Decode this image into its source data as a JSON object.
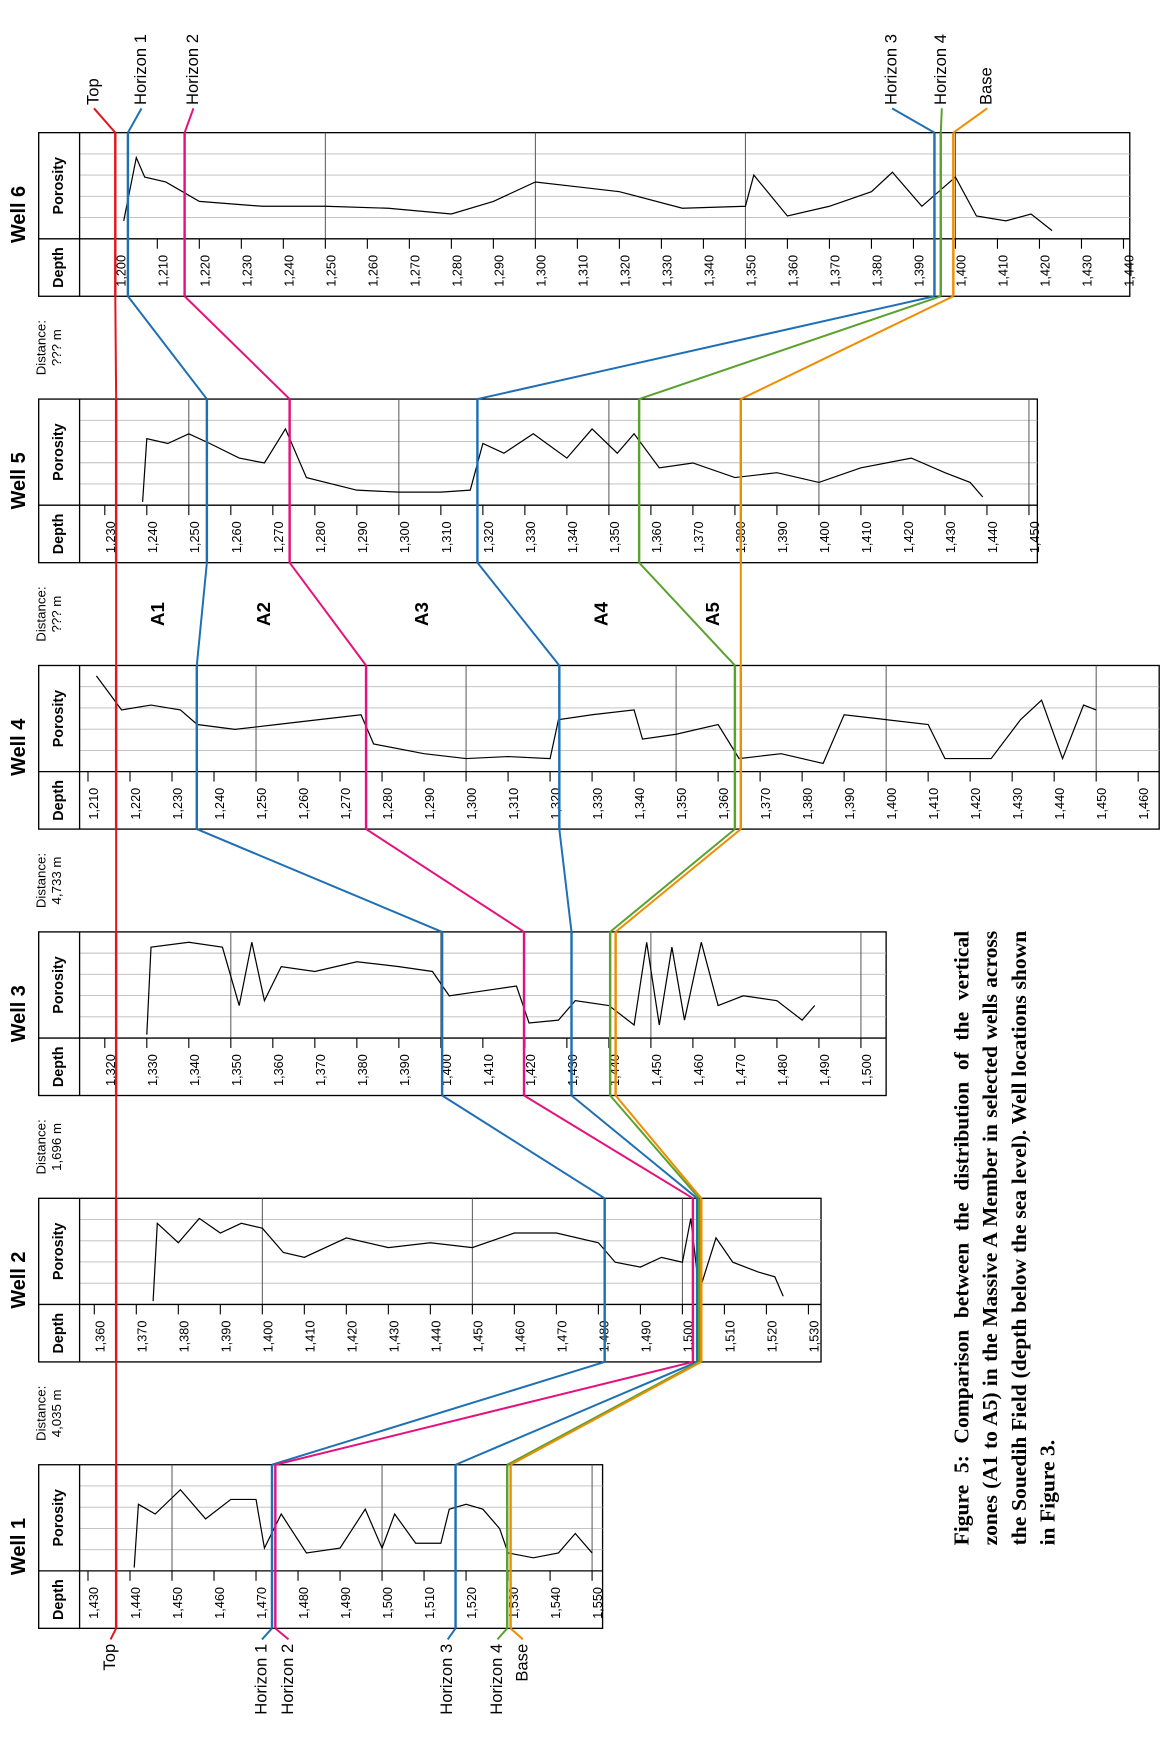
{
  "figure": {
    "caption": "Figure 5: Comparison between the distribution of the vertical zones (A1 to A5) in the Massive A Member in selected wells across the Souedih Field (depth below the sea level). Well locations shown in Figure 3.",
    "track_labels": {
      "depth": "Depth",
      "porosity": "Porosity"
    },
    "zones": [
      "A1",
      "A2",
      "A3",
      "A4",
      "A5"
    ],
    "horizons": [
      {
        "name": "Top",
        "color": "#e3141b"
      },
      {
        "name": "Horizon 1",
        "color": "#1f6fb5"
      },
      {
        "name": "Horizon 2",
        "color": "#e5127d"
      },
      {
        "name": "Horizon 3",
        "color": "#1f6fb5"
      },
      {
        "name": "Horizon 4",
        "color": "#5aa12e"
      },
      {
        "name": "Base",
        "color": "#f08c00"
      }
    ],
    "distances": [
      {
        "label": "Distance:",
        "value": "??? m",
        "color": "#e3141b"
      },
      {
        "label": "Distance:",
        "value": "??? m",
        "color": "#e3141b"
      },
      {
        "label": "Distance:",
        "value": "4,733 m",
        "color": "#000000"
      },
      {
        "label": "Distance:",
        "value": "1,696 m",
        "color": "#000000"
      },
      {
        "label": "Distance:",
        "value": "4,035 m",
        "color": "#000000"
      }
    ],
    "wells": [
      {
        "name": "Well 6",
        "xlim": [
          1191.5,
          1441.5
        ],
        "horizons": [
          1200,
          1203,
          1216.5,
          1395,
          1396.5,
          1399.5
        ],
        "xticks": [
          {
            "value": 1200,
            "label": "1,200"
          },
          {
            "value": 1210,
            "label": "1,210"
          },
          {
            "value": 1220,
            "label": "1,220"
          },
          {
            "value": 1230,
            "label": "1,230"
          },
          {
            "value": 1240,
            "label": "1,240"
          },
          {
            "value": 1250,
            "label": "1,250"
          },
          {
            "value": 1260,
            "label": "1,260"
          },
          {
            "value": 1270,
            "label": "1,270"
          },
          {
            "value": 1280,
            "label": "1,280"
          },
          {
            "value": 1290,
            "label": "1,290"
          },
          {
            "value": 1300,
            "label": "1,300"
          },
          {
            "value": 1310,
            "label": "1,310"
          },
          {
            "value": 1320,
            "label": "1,320"
          },
          {
            "value": 1330,
            "label": "1,330"
          },
          {
            "value": 1340,
            "label": "1,340"
          },
          {
            "value": 1350,
            "label": "1,350"
          },
          {
            "value": 1360,
            "label": "1,360"
          },
          {
            "value": 1370,
            "label": "1,370"
          },
          {
            "value": 1380,
            "label": "1,380"
          },
          {
            "value": 1390,
            "label": "1,390"
          },
          {
            "value": 1400,
            "label": "1,400"
          },
          {
            "value": 1410,
            "label": "1,410"
          },
          {
            "value": 1420,
            "label": "1,420"
          },
          {
            "value": 1430,
            "label": "1,430"
          },
          {
            "value": 1440,
            "label": "1,440"
          }
        ],
        "porosity": {
          "depth": [
            1202,
            1205,
            1207,
            1212,
            1220,
            1235,
            1250,
            1265,
            1280,
            1290,
            1300,
            1310,
            1320,
            1335,
            1350,
            1352,
            1360,
            1370,
            1380,
            1385,
            1392,
            1400,
            1405,
            1412,
            1418,
            1423
          ],
          "values": [
            0.15,
            0.8,
            0.6,
            0.55,
            0.35,
            0.3,
            0.3,
            0.28,
            0.22,
            0.35,
            0.55,
            0.5,
            0.45,
            0.28,
            0.3,
            0.62,
            0.2,
            0.3,
            0.45,
            0.65,
            0.3,
            0.6,
            0.2,
            0.15,
            0.22,
            0.05
          ]
        }
      },
      {
        "name": "Well 5",
        "xlim": [
          1224,
          1452
        ],
        "horizons": [
          1232.7,
          1254.3,
          1274,
          1318.7,
          1357.2,
          1381.4
        ],
        "xticks": [
          {
            "value": 1230,
            "label": "1,230"
          },
          {
            "value": 1240,
            "label": "1,240"
          },
          {
            "value": 1250,
            "label": "1,250"
          },
          {
            "value": 1260,
            "label": "1,260"
          },
          {
            "value": 1270,
            "label": "1,270"
          },
          {
            "value": 1280,
            "label": "1,280"
          },
          {
            "value": 1290,
            "label": "1,290"
          },
          {
            "value": 1300,
            "label": "1,300"
          },
          {
            "value": 1310,
            "label": "1,310"
          },
          {
            "value": 1320,
            "label": "1,320"
          },
          {
            "value": 1330,
            "label": "1,330"
          },
          {
            "value": 1340,
            "label": "1,340"
          },
          {
            "value": 1350,
            "label": "1,350"
          },
          {
            "value": 1360,
            "label": "1,360"
          },
          {
            "value": 1370,
            "label": "1,370"
          },
          {
            "value": 1380,
            "label": "1,380"
          },
          {
            "value": 1390,
            "label": "1,390"
          },
          {
            "value": 1400,
            "label": "1,400"
          },
          {
            "value": 1410,
            "label": "1,410"
          },
          {
            "value": 1420,
            "label": "1,420"
          },
          {
            "value": 1430,
            "label": "1,430"
          },
          {
            "value": 1440,
            "label": "1,440"
          },
          {
            "value": 1450,
            "label": "1,450"
          }
        ],
        "porosity": {
          "depth": [
            1239,
            1240,
            1245,
            1250,
            1255,
            1262,
            1268,
            1273,
            1278,
            1290,
            1300,
            1310,
            1317,
            1320,
            1325,
            1332,
            1340,
            1346,
            1352,
            1356,
            1362,
            1370,
            1380,
            1390,
            1400,
            1410,
            1422,
            1430,
            1436,
            1439
          ],
          "values": [
            0.0,
            0.65,
            0.6,
            0.7,
            0.6,
            0.45,
            0.4,
            0.75,
            0.25,
            0.12,
            0.1,
            0.1,
            0.12,
            0.6,
            0.5,
            0.7,
            0.45,
            0.75,
            0.5,
            0.7,
            0.35,
            0.4,
            0.25,
            0.3,
            0.2,
            0.35,
            0.45,
            0.3,
            0.2,
            0.05
          ]
        }
      },
      {
        "name": "Well 4",
        "xlim": [
          1208,
          1465
        ],
        "horizons": [
          1216.7,
          1235.9,
          1276.2,
          1322.2,
          1364,
          1365.4
        ],
        "xticks": [
          {
            "value": 1210,
            "label": "1,210"
          },
          {
            "value": 1220,
            "label": "1,220"
          },
          {
            "value": 1230,
            "label": "1,230"
          },
          {
            "value": 1240,
            "label": "1,240"
          },
          {
            "value": 1250,
            "label": "1,250"
          },
          {
            "value": 1260,
            "label": "1,260"
          },
          {
            "value": 1270,
            "label": "1,270"
          },
          {
            "value": 1280,
            "label": "1,280"
          },
          {
            "value": 1290,
            "label": "1,290"
          },
          {
            "value": 1300,
            "label": "1,300"
          },
          {
            "value": 1310,
            "label": "1,310"
          },
          {
            "value": 1320,
            "label": "1,320"
          },
          {
            "value": 1330,
            "label": "1,330"
          },
          {
            "value": 1340,
            "label": "1,340"
          },
          {
            "value": 1350,
            "label": "1,350"
          },
          {
            "value": 1360,
            "label": "1,360"
          },
          {
            "value": 1370,
            "label": "1,370"
          },
          {
            "value": 1380,
            "label": "1,380"
          },
          {
            "value": 1390,
            "label": "1,390"
          },
          {
            "value": 1400,
            "label": "1,400"
          },
          {
            "value": 1410,
            "label": "1,410"
          },
          {
            "value": 1420,
            "label": "1,420"
          },
          {
            "value": 1430,
            "label": "1,430"
          },
          {
            "value": 1440,
            "label": "1,440"
          },
          {
            "value": 1450,
            "label": "1,450"
          },
          {
            "value": 1460,
            "label": "1,460"
          }
        ],
        "porosity": {
          "depth": [
            1212,
            1218,
            1225,
            1232,
            1236,
            1245,
            1255,
            1265,
            1275,
            1278,
            1290,
            1300,
            1310,
            1320,
            1322,
            1330,
            1340,
            1342,
            1350,
            1360,
            1365,
            1375,
            1385,
            1390,
            1400,
            1410,
            1414,
            1425,
            1432,
            1437,
            1442,
            1447,
            1450
          ],
          "values": [
            0.95,
            0.6,
            0.65,
            0.6,
            0.45,
            0.4,
            0.45,
            0.5,
            0.55,
            0.25,
            0.15,
            0.1,
            0.12,
            0.1,
            0.5,
            0.55,
            0.6,
            0.3,
            0.35,
            0.45,
            0.1,
            0.15,
            0.05,
            0.55,
            0.5,
            0.45,
            0.1,
            0.1,
            0.5,
            0.7,
            0.1,
            0.65,
            0.6
          ]
        }
      },
      {
        "name": "Well 3",
        "xlim": [
          1314,
          1506
        ],
        "horizons": [
          1322.7,
          1400.3,
          1419.8,
          1431.1,
          1440.3,
          1441.6
        ],
        "xticks": [
          {
            "value": 1320,
            "label": "1,320"
          },
          {
            "value": 1330,
            "label": "1,330"
          },
          {
            "value": 1340,
            "label": "1,340"
          },
          {
            "value": 1350,
            "label": "1,350"
          },
          {
            "value": 1360,
            "label": "1,360"
          },
          {
            "value": 1370,
            "label": "1,370"
          },
          {
            "value": 1380,
            "label": "1,380"
          },
          {
            "value": 1390,
            "label": "1,390"
          },
          {
            "value": 1400,
            "label": "1,400"
          },
          {
            "value": 1410,
            "label": "1,410"
          },
          {
            "value": 1420,
            "label": "1,420"
          },
          {
            "value": 1430,
            "label": "1,430"
          },
          {
            "value": 1440,
            "label": "1,440"
          },
          {
            "value": 1450,
            "label": "1,450"
          },
          {
            "value": 1460,
            "label": "1,460"
          },
          {
            "value": 1470,
            "label": "1,470"
          },
          {
            "value": 1480,
            "label": "1,480"
          },
          {
            "value": 1490,
            "label": "1,490"
          },
          {
            "value": 1500,
            "label": "1,500"
          }
        ],
        "porosity": {
          "depth": [
            1330,
            1331,
            1340,
            1348,
            1352,
            1355,
            1358,
            1362,
            1370,
            1380,
            1390,
            1398,
            1402,
            1410,
            1418,
            1421,
            1428,
            1432,
            1440,
            1446,
            1449,
            1452,
            1455,
            1458,
            1462,
            1466,
            1472,
            1480,
            1486,
            1489
          ],
          "values": [
            0.0,
            0.9,
            0.95,
            0.9,
            0.3,
            0.95,
            0.35,
            0.7,
            0.65,
            0.75,
            0.7,
            0.65,
            0.4,
            0.45,
            0.5,
            0.12,
            0.15,
            0.35,
            0.3,
            0.1,
            0.95,
            0.1,
            0.9,
            0.15,
            0.95,
            0.3,
            0.4,
            0.35,
            0.15,
            0.3
          ]
        }
      },
      {
        "name": "Well 2",
        "xlim": [
          1356.5,
          1533
        ],
        "horizons": [
          1365.2,
          1481.5,
          1502.5,
          1503.5,
          1504,
          1504.5
        ],
        "xticks": [
          {
            "value": 1360,
            "label": "1,360"
          },
          {
            "value": 1370,
            "label": "1,370"
          },
          {
            "value": 1380,
            "label": "1,380"
          },
          {
            "value": 1390,
            "label": "1,390"
          },
          {
            "value": 1400,
            "label": "1,400"
          },
          {
            "value": 1410,
            "label": "1,410"
          },
          {
            "value": 1420,
            "label": "1,420"
          },
          {
            "value": 1430,
            "label": "1,430"
          },
          {
            "value": 1440,
            "label": "1,440"
          },
          {
            "value": 1450,
            "label": "1,450"
          },
          {
            "value": 1460,
            "label": "1,460"
          },
          {
            "value": 1470,
            "label": "1,470"
          },
          {
            "value": 1480,
            "label": "1,480"
          },
          {
            "value": 1490,
            "label": "1,490"
          },
          {
            "value": 1500,
            "label": "1,500"
          },
          {
            "value": 1510,
            "label": "1,510"
          },
          {
            "value": 1520,
            "label": "1,520"
          },
          {
            "value": 1530,
            "label": "1,530"
          }
        ],
        "porosity": {
          "depth": [
            1374,
            1375,
            1380,
            1385,
            1390,
            1395,
            1400,
            1405,
            1410,
            1420,
            1430,
            1440,
            1450,
            1460,
            1470,
            1480,
            1484,
            1490,
            1495,
            1500,
            1502,
            1504,
            1508,
            1512,
            1518,
            1522,
            1524
          ],
          "values": [
            0.0,
            0.8,
            0.6,
            0.85,
            0.7,
            0.8,
            0.75,
            0.5,
            0.45,
            0.65,
            0.55,
            0.6,
            0.55,
            0.7,
            0.7,
            0.6,
            0.4,
            0.35,
            0.45,
            0.4,
            0.85,
            0.1,
            0.65,
            0.4,
            0.3,
            0.25,
            0.05
          ]
        }
      },
      {
        "name": "Well 1",
        "xlim": [
          1428,
          1552.5
        ],
        "horizons": [
          1436.7,
          1473.8,
          1474.6,
          1517.5,
          1529.8,
          1530.6
        ],
        "xticks": [
          {
            "value": 1430,
            "label": "1,430"
          },
          {
            "value": 1440,
            "label": "1,440"
          },
          {
            "value": 1450,
            "label": "1,450"
          },
          {
            "value": 1460,
            "label": "1,460"
          },
          {
            "value": 1470,
            "label": "1,470"
          },
          {
            "value": 1480,
            "label": "1,480"
          },
          {
            "value": 1490,
            "label": "1,490"
          },
          {
            "value": 1500,
            "label": "1,500"
          },
          {
            "value": 1510,
            "label": "1,510"
          },
          {
            "value": 1520,
            "label": "1,520"
          },
          {
            "value": 1530,
            "label": "1,530"
          },
          {
            "value": 1540,
            "label": "1,540"
          },
          {
            "value": 1550,
            "label": "1,550"
          }
        ],
        "porosity": {
          "depth": [
            1441,
            1442,
            1446,
            1452,
            1458,
            1464,
            1470,
            1472,
            1476,
            1482,
            1490,
            1496,
            1500,
            1503,
            1508,
            1514,
            1516,
            1520,
            1524,
            1528,
            1530,
            1536,
            1542,
            1546,
            1550
          ],
          "values": [
            0.0,
            0.65,
            0.55,
            0.8,
            0.5,
            0.7,
            0.7,
            0.2,
            0.55,
            0.15,
            0.2,
            0.6,
            0.2,
            0.55,
            0.25,
            0.25,
            0.6,
            0.65,
            0.6,
            0.4,
            0.15,
            0.1,
            0.15,
            0.35,
            0.15
          ]
        }
      }
    ]
  }
}
